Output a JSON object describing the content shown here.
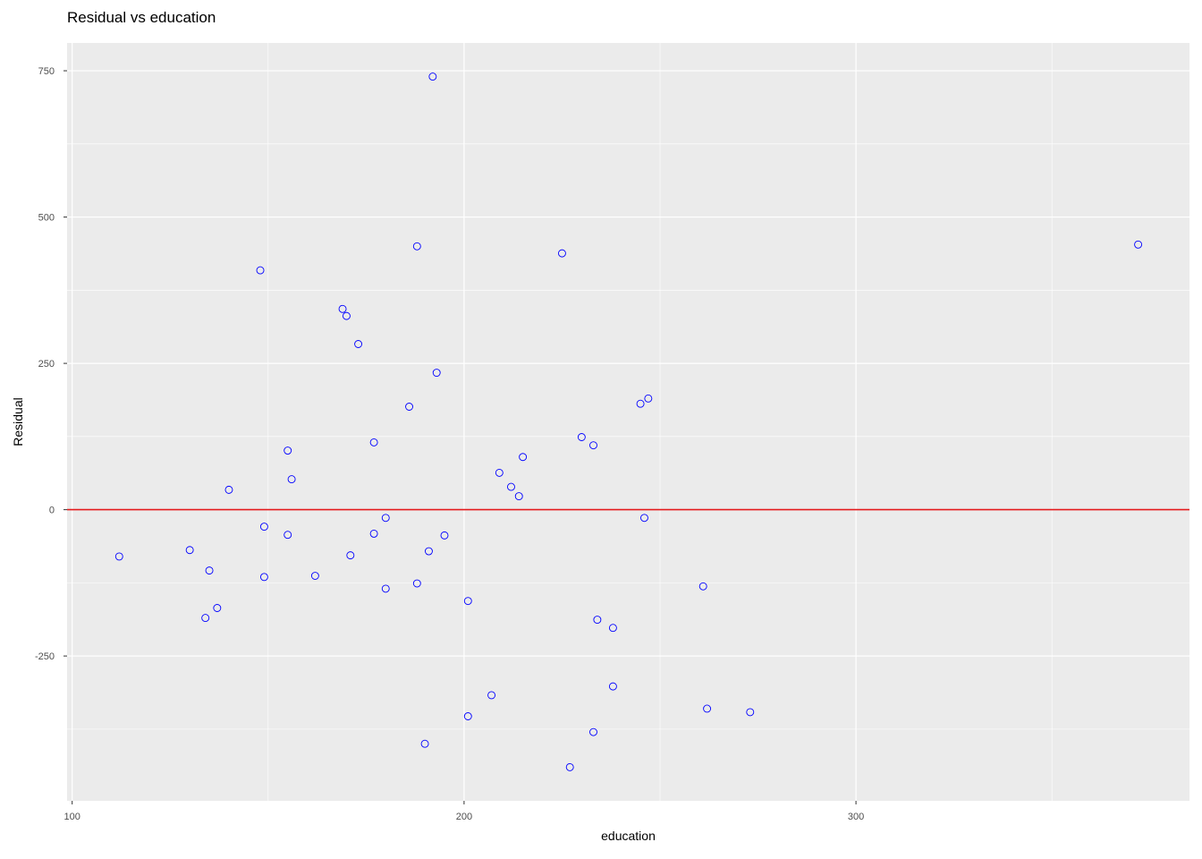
{
  "chart_data": {
    "type": "scatter",
    "title": "Residual vs education",
    "xlabel": "education",
    "ylabel": "Residual",
    "xlim": [
      98.7,
      385.1
    ],
    "ylim": [
      -497.5,
      797.5
    ],
    "x_ticks": [
      100,
      200,
      300
    ],
    "y_ticks": [
      -250,
      0,
      250,
      500,
      750
    ],
    "grid": true,
    "reference_line": {
      "y": 0,
      "color": "#e41a1c"
    },
    "colors": {
      "panel": "#ebebeb",
      "grid": "#ffffff",
      "point": "#0000ff",
      "reference": "#e41a1c"
    },
    "points": [
      {
        "x": 112,
        "y": -80
      },
      {
        "x": 130,
        "y": -69
      },
      {
        "x": 134,
        "y": -185
      },
      {
        "x": 135,
        "y": -104
      },
      {
        "x": 137,
        "y": -168
      },
      {
        "x": 140,
        "y": 34
      },
      {
        "x": 148,
        "y": 409
      },
      {
        "x": 149,
        "y": -29
      },
      {
        "x": 149,
        "y": -115
      },
      {
        "x": 155,
        "y": 101
      },
      {
        "x": 155,
        "y": -43
      },
      {
        "x": 156,
        "y": 52
      },
      {
        "x": 162,
        "y": -113
      },
      {
        "x": 169,
        "y": 343
      },
      {
        "x": 170,
        "y": 331
      },
      {
        "x": 171,
        "y": -78
      },
      {
        "x": 173,
        "y": 283
      },
      {
        "x": 177,
        "y": 115
      },
      {
        "x": 177,
        "y": -41
      },
      {
        "x": 180,
        "y": -14
      },
      {
        "x": 180,
        "y": -135
      },
      {
        "x": 186,
        "y": 176
      },
      {
        "x": 188,
        "y": 450
      },
      {
        "x": 188,
        "y": -126
      },
      {
        "x": 190,
        "y": -400
      },
      {
        "x": 191,
        "y": -71
      },
      {
        "x": 192,
        "y": 740
      },
      {
        "x": 193,
        "y": 234
      },
      {
        "x": 195,
        "y": -44
      },
      {
        "x": 201,
        "y": -156
      },
      {
        "x": 201,
        "y": -353
      },
      {
        "x": 207,
        "y": -317
      },
      {
        "x": 209,
        "y": 63
      },
      {
        "x": 212,
        "y": 39
      },
      {
        "x": 214,
        "y": 23
      },
      {
        "x": 215,
        "y": 90
      },
      {
        "x": 225,
        "y": 438
      },
      {
        "x": 227,
        "y": -440
      },
      {
        "x": 230,
        "y": 124
      },
      {
        "x": 233,
        "y": 110
      },
      {
        "x": 233,
        "y": -380
      },
      {
        "x": 234,
        "y": -188
      },
      {
        "x": 238,
        "y": -202
      },
      {
        "x": 238,
        "y": -302
      },
      {
        "x": 245,
        "y": 181
      },
      {
        "x": 246,
        "y": -14
      },
      {
        "x": 247,
        "y": 190
      },
      {
        "x": 261,
        "y": -131
      },
      {
        "x": 262,
        "y": -340
      },
      {
        "x": 273,
        "y": -346
      },
      {
        "x": 372,
        "y": 453
      }
    ]
  }
}
